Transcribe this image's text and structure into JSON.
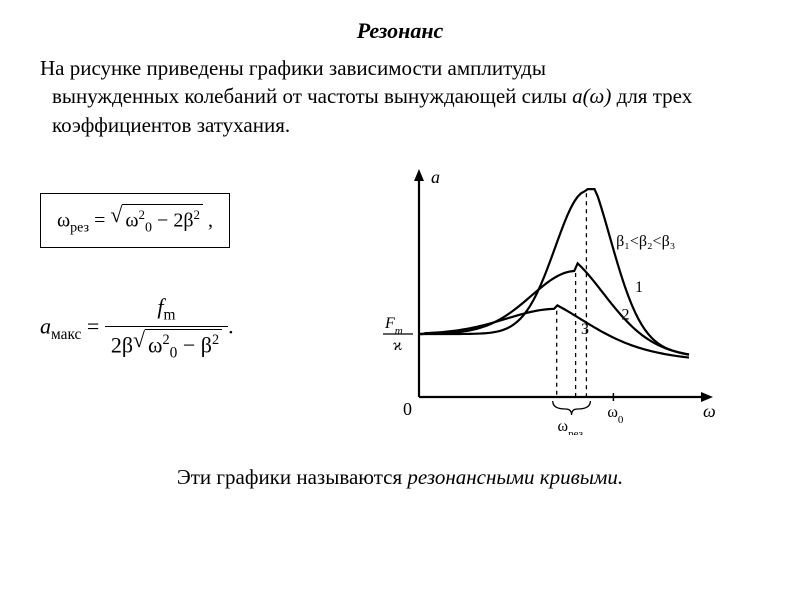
{
  "title": "Резонанс",
  "intro": {
    "line1": "На рисунке приведены графики зависимости амплитуды",
    "line2_a": "вынужденных колебаний от частоты вынуждающей силы ",
    "line2_func": "а(ω)",
    "line2_b": " для трех коэффициентов затухания."
  },
  "formula1": {
    "lhs": "ω",
    "lhs_sub": "рез",
    "eq": " = ",
    "rad": "ω",
    "rad_sup": "2",
    "rad_sub": "0",
    "minus": "  −  2β",
    "beta_sup": "2",
    "trail": " ,"
  },
  "formula2": {
    "lhs": "a",
    "lhs_sub": "макс",
    "eq": "  =  ",
    "num": "f",
    "num_sub": "m",
    "den_lead": "2β",
    "den_rad_a": "ω",
    "den_rad_a_sup": "2",
    "den_rad_a_sub": "0",
    "den_minus": "  −  β",
    "den_beta_sup": "2",
    "trail": "."
  },
  "chart": {
    "type": "line",
    "background_color": "#ffffff",
    "axis_color": "#000000",
    "line_color": "#000000",
    "line_width": 2.2,
    "dash_pattern": "4 4",
    "y_label": "a",
    "x_label": "ω",
    "origin_label": "0",
    "y_intercept_label_top": "F",
    "y_intercept_label_top_sub": "m",
    "y_intercept_label_bot": "ϰ",
    "x_tick_wres": "ω",
    "x_tick_wres_sub": "рез",
    "x_tick_w0": "ω",
    "x_tick_w0_sub": "0",
    "legend": "β₁<β₂<β₃",
    "curve_labels": {
      "c1": "1",
      "c2": "2",
      "c3": "3"
    },
    "font_size_labels": 18,
    "data": {
      "baseline_y": 0.3,
      "c1": {
        "wres": 0.62,
        "peak": 0.98
      },
      "c2": {
        "wres": 0.58,
        "peak": 0.6
      },
      "c3": {
        "wres": 0.51,
        "peak": 0.42
      }
    },
    "xlim": [
      0,
      1.0
    ],
    "ylim": [
      0,
      1.0
    ]
  },
  "footer_a": "Эти графики называются ",
  "footer_b": "резонансными кривыми."
}
